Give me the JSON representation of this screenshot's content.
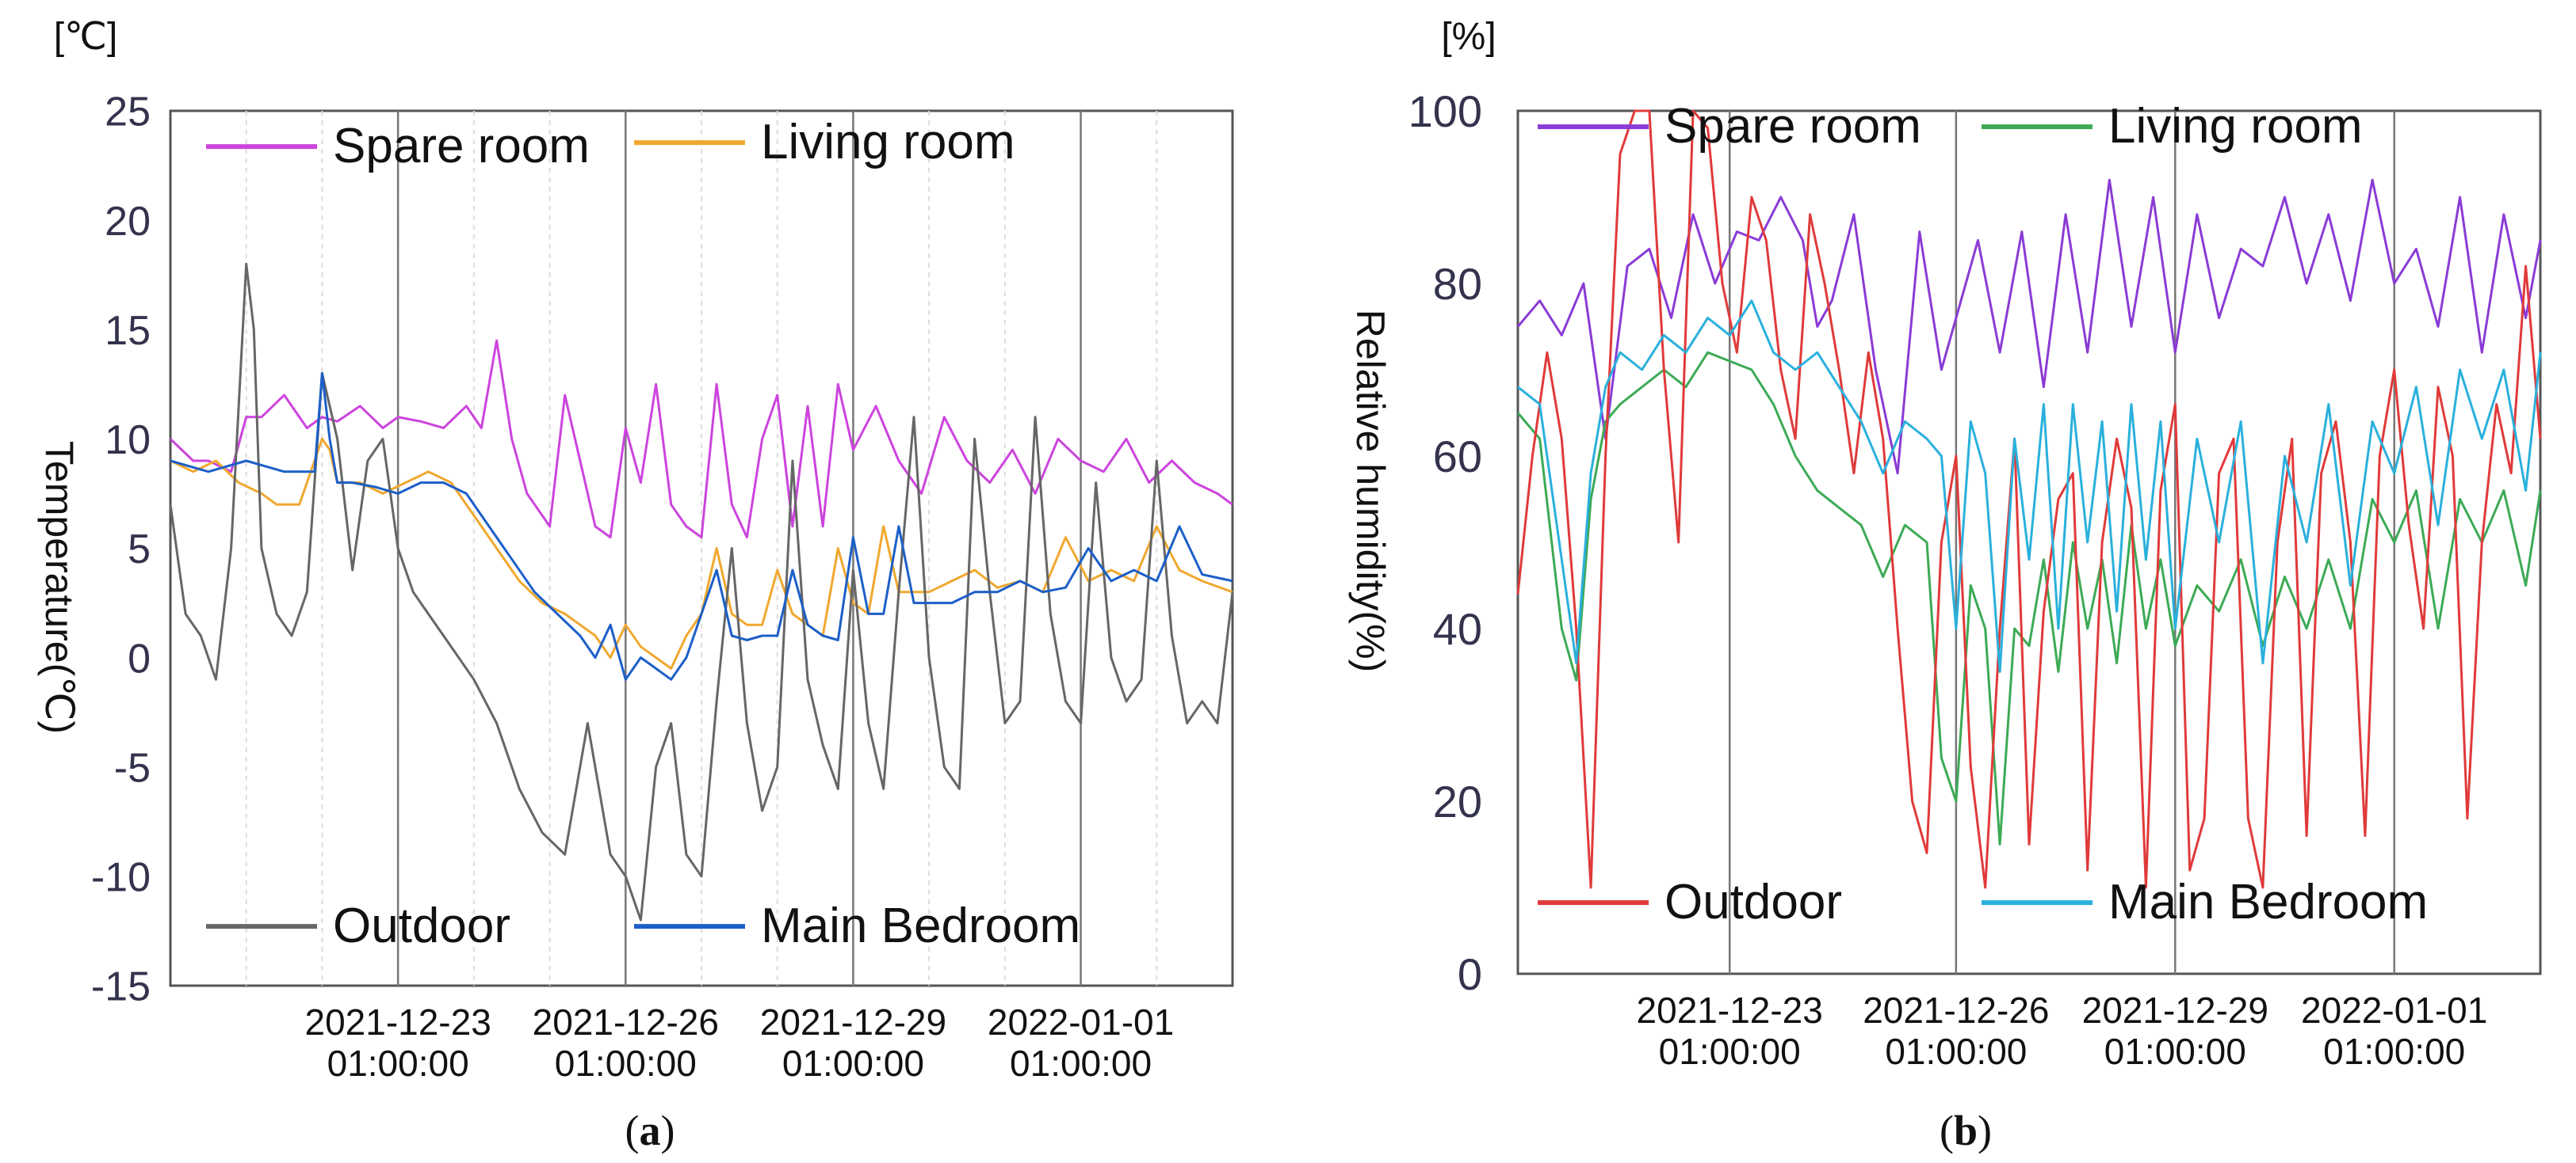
{
  "chart_data": [
    {
      "type": "line",
      "panel": "(a)",
      "panel_open": "(",
      "panel_letter": "a",
      "panel_close": ")",
      "unit_label": "[℃]",
      "ylabel": "Temperature(℃)",
      "ylim": [
        -15,
        25
      ],
      "yticks": [
        25,
        20,
        15,
        10,
        5,
        0,
        -5,
        -10,
        -15
      ],
      "xlim": [
        0,
        14
      ],
      "xticks": [
        {
          "day": 3,
          "date": "2021-12-23",
          "time": "01:00:00"
        },
        {
          "day": 6,
          "date": "2021-12-26",
          "time": "01:00:00"
        },
        {
          "day": 9,
          "date": "2021-12-29",
          "time": "01:00:00"
        },
        {
          "day": 12,
          "date": "2022-01-01",
          "time": "01:00:00"
        }
      ],
      "legend_top": [
        "Spare room",
        "Living room"
      ],
      "legend_bottom": [
        "Outdoor",
        "Main Bedroom"
      ],
      "series": [
        {
          "name": "Spare room",
          "color": "#cc44dd",
          "x": [
            0,
            0.3,
            0.5,
            0.8,
            1.0,
            1.2,
            1.5,
            1.8,
            2.0,
            2.2,
            2.5,
            2.8,
            3.0,
            3.3,
            3.6,
            3.9,
            4.1,
            4.3,
            4.5,
            4.7,
            5.0,
            5.2,
            5.4,
            5.6,
            5.8,
            6.0,
            6.2,
            6.4,
            6.6,
            6.8,
            7.0,
            7.2,
            7.4,
            7.6,
            7.8,
            8.0,
            8.2,
            8.4,
            8.6,
            8.8,
            9.0,
            9.3,
            9.6,
            9.9,
            10.2,
            10.5,
            10.8,
            11.1,
            11.4,
            11.7,
            12.0,
            12.3,
            12.6,
            12.9,
            13.2,
            13.5,
            13.8,
            14.0
          ],
          "values": [
            10,
            9,
            9,
            8.5,
            11,
            11,
            12,
            10.5,
            11,
            10.8,
            11.5,
            10.5,
            11,
            10.8,
            10.5,
            11.5,
            10.5,
            14.5,
            10,
            7.5,
            6,
            12,
            9,
            6,
            5.5,
            10.5,
            8,
            12.5,
            7,
            6,
            5.5,
            12.5,
            7,
            5.5,
            10,
            12,
            6,
            11.5,
            6,
            12.5,
            9.5,
            11.5,
            9,
            7.5,
            11,
            9,
            8,
            9.5,
            7.5,
            10,
            9,
            8.5,
            10,
            8,
            9,
            8,
            7.5,
            7
          ]
        },
        {
          "name": "Living room",
          "color": "#f0a830",
          "x": [
            0,
            0.3,
            0.6,
            0.9,
            1.2,
            1.4,
            1.7,
            2.0,
            2.1,
            2.2,
            2.3,
            2.5,
            2.8,
            3.1,
            3.4,
            3.7,
            4.0,
            4.3,
            4.6,
            4.9,
            5.2,
            5.4,
            5.6,
            5.8,
            6.0,
            6.2,
            6.4,
            6.6,
            6.8,
            7.0,
            7.2,
            7.4,
            7.6,
            7.8,
            8.0,
            8.2,
            8.4,
            8.6,
            8.8,
            9.0,
            9.2,
            9.4,
            9.6,
            9.8,
            10.0,
            10.3,
            10.6,
            10.9,
            11.2,
            11.5,
            11.8,
            12.1,
            12.4,
            12.7,
            13.0,
            13.3,
            13.6,
            14.0
          ],
          "values": [
            9,
            8.5,
            9,
            8,
            7.5,
            7,
            7,
            10,
            9.5,
            8,
            8,
            8,
            7.5,
            8,
            8.5,
            8,
            6.5,
            5,
            3.5,
            2.5,
            2,
            1.5,
            1,
            0,
            1.5,
            0.5,
            0,
            -0.5,
            1,
            2,
            5,
            2,
            1.5,
            1.5,
            4,
            2,
            1.5,
            1,
            5,
            2.5,
            2,
            6,
            3,
            3,
            3,
            3.5,
            4,
            3.2,
            3.5,
            3,
            5.5,
            3.5,
            4,
            3.5,
            6,
            4,
            3.5,
            3
          ]
        },
        {
          "name": "Outdoor",
          "color": "#666666",
          "x": [
            0,
            0.2,
            0.4,
            0.6,
            0.8,
            1.0,
            1.1,
            1.2,
            1.4,
            1.6,
            1.8,
            2.0,
            2.2,
            2.4,
            2.6,
            2.8,
            3.0,
            3.2,
            3.4,
            3.6,
            3.8,
            4.0,
            4.3,
            4.6,
            4.9,
            5.2,
            5.5,
            5.8,
            6.0,
            6.2,
            6.4,
            6.6,
            6.8,
            7.0,
            7.2,
            7.4,
            7.6,
            7.8,
            8.0,
            8.2,
            8.4,
            8.6,
            8.8,
            9.0,
            9.2,
            9.4,
            9.6,
            9.8,
            10.0,
            10.2,
            10.4,
            10.6,
            10.8,
            11.0,
            11.2,
            11.4,
            11.6,
            11.8,
            12.0,
            12.2,
            12.4,
            12.6,
            12.8,
            13.0,
            13.2,
            13.4,
            13.6,
            13.8,
            14.0
          ],
          "values": [
            7,
            2,
            1,
            -1,
            5,
            18,
            15,
            5,
            2,
            1,
            3,
            13,
            10,
            4,
            9,
            10,
            5,
            3,
            2,
            1,
            0,
            -1,
            -3,
            -6,
            -8,
            -9,
            -3,
            -9,
            -10,
            -12,
            -5,
            -3,
            -9,
            -10,
            -2,
            5,
            -3,
            -7,
            -5,
            9,
            -1,
            -4,
            -6,
            4,
            -3,
            -6,
            3,
            11,
            0,
            -5,
            -6,
            10,
            3,
            -3,
            -2,
            11,
            2,
            -2,
            -3,
            8,
            0,
            -2,
            -1,
            9,
            1,
            -3,
            -2,
            -3,
            3
          ]
        },
        {
          "name": "Main Bedroom",
          "color": "#1c5fc8",
          "x": [
            0,
            0.5,
            1.0,
            1.5,
            1.9,
            2.0,
            2.1,
            2.2,
            2.4,
            2.7,
            3.0,
            3.3,
            3.6,
            3.9,
            4.2,
            4.5,
            4.8,
            5.1,
            5.4,
            5.6,
            5.8,
            6.0,
            6.2,
            6.4,
            6.6,
            6.8,
            7.0,
            7.2,
            7.4,
            7.6,
            7.8,
            8.0,
            8.2,
            8.4,
            8.6,
            8.8,
            9.0,
            9.2,
            9.4,
            9.6,
            9.8,
            10.0,
            10.3,
            10.6,
            10.9,
            11.2,
            11.5,
            11.8,
            12.1,
            12.4,
            12.7,
            13.0,
            13.3,
            13.6,
            14.0
          ],
          "values": [
            9,
            8.5,
            9,
            8.5,
            8.5,
            13,
            10,
            8,
            8,
            7.8,
            7.5,
            8,
            8,
            7.5,
            6,
            4.5,
            3,
            2,
            1,
            0,
            1.5,
            -1,
            0,
            -0.5,
            -1,
            0,
            2,
            4,
            1,
            0.8,
            1,
            1,
            4,
            1.5,
            1,
            0.8,
            5.5,
            2,
            2,
            6,
            2.5,
            2.5,
            2.5,
            3,
            3,
            3.5,
            3,
            3.2,
            5,
            3.5,
            4,
            3.5,
            6,
            3.8,
            3.5
          ]
        }
      ]
    },
    {
      "type": "line",
      "panel": "(b)",
      "panel_open": "(",
      "panel_letter": "b",
      "panel_close": ")",
      "unit_label": "[%]",
      "ylabel": "Relative humidity(%)",
      "ylim": [
        0,
        100
      ],
      "yticks": [
        100,
        80,
        60,
        40,
        20,
        0
      ],
      "xlim": [
        0,
        14
      ],
      "xticks": [
        {
          "day": 2.9,
          "date": "2021-12-23",
          "time": "01:00:00"
        },
        {
          "day": 6,
          "date": "2021-12-26",
          "time": "01:00:00"
        },
        {
          "day": 9,
          "date": "2021-12-29",
          "time": "01:00:00"
        },
        {
          "day": 12,
          "date": "2022-01-01",
          "time": "01:00:00"
        }
      ],
      "legend_top": [
        "Spare room",
        "Living room"
      ],
      "legend_bottom": [
        "Outdoor",
        "Main Bedroom"
      ],
      "series": [
        {
          "name": "Spare room",
          "color": "#8a3bd6",
          "x": [
            0,
            0.3,
            0.6,
            0.9,
            1.2,
            1.5,
            1.8,
            2.1,
            2.4,
            2.7,
            3.0,
            3.3,
            3.6,
            3.9,
            4.1,
            4.3,
            4.6,
            4.9,
            5.2,
            5.5,
            5.8,
            6.0,
            6.3,
            6.6,
            6.9,
            7.2,
            7.5,
            7.8,
            8.1,
            8.4,
            8.7,
            9.0,
            9.3,
            9.6,
            9.9,
            10.2,
            10.5,
            10.8,
            11.1,
            11.4,
            11.7,
            12.0,
            12.3,
            12.6,
            12.9,
            13.2,
            13.5,
            13.8,
            14.0
          ],
          "values": [
            75,
            78,
            74,
            80,
            62,
            82,
            84,
            76,
            88,
            80,
            86,
            85,
            90,
            85,
            75,
            78,
            88,
            70,
            58,
            86,
            70,
            76,
            85,
            72,
            86,
            68,
            88,
            72,
            92,
            75,
            90,
            72,
            88,
            76,
            84,
            82,
            90,
            80,
            88,
            78,
            92,
            80,
            84,
            75,
            90,
            72,
            88,
            76,
            85
          ]
        },
        {
          "name": "Living room",
          "color": "#3caa55",
          "x": [
            0,
            0.3,
            0.6,
            0.8,
            1.0,
            1.2,
            1.4,
            1.7,
            2.0,
            2.3,
            2.6,
            2.9,
            3.2,
            3.5,
            3.8,
            4.1,
            4.4,
            4.7,
            5.0,
            5.3,
            5.6,
            5.8,
            6.0,
            6.2,
            6.4,
            6.6,
            6.8,
            7.0,
            7.2,
            7.4,
            7.6,
            7.8,
            8.0,
            8.2,
            8.4,
            8.6,
            8.8,
            9.0,
            9.3,
            9.6,
            9.9,
            10.2,
            10.5,
            10.8,
            11.1,
            11.4,
            11.7,
            12.0,
            12.3,
            12.6,
            12.9,
            13.2,
            13.5,
            13.8,
            14.0
          ],
          "values": [
            65,
            62,
            40,
            34,
            55,
            64,
            66,
            68,
            70,
            68,
            72,
            71,
            70,
            66,
            60,
            56,
            54,
            52,
            46,
            52,
            50,
            25,
            20,
            45,
            40,
            15,
            40,
            38,
            48,
            35,
            50,
            40,
            48,
            36,
            52,
            40,
            48,
            38,
            45,
            42,
            48,
            38,
            46,
            40,
            48,
            40,
            55,
            50,
            56,
            40,
            55,
            50,
            56,
            45,
            56
          ]
        },
        {
          "name": "Outdoor",
          "color": "#e03a3a",
          "x": [
            0,
            0.2,
            0.4,
            0.6,
            0.8,
            1.0,
            1.2,
            1.4,
            1.6,
            1.8,
            2.0,
            2.2,
            2.4,
            2.6,
            2.8,
            3.0,
            3.2,
            3.4,
            3.6,
            3.8,
            4.0,
            4.2,
            4.4,
            4.6,
            4.8,
            5.0,
            5.2,
            5.4,
            5.6,
            5.8,
            6.0,
            6.2,
            6.4,
            6.6,
            6.8,
            7.0,
            7.2,
            7.4,
            7.6,
            7.8,
            8.0,
            8.2,
            8.4,
            8.6,
            8.8,
            9.0,
            9.2,
            9.4,
            9.6,
            9.8,
            10.0,
            10.2,
            10.4,
            10.6,
            10.8,
            11.0,
            11.2,
            11.4,
            11.6,
            11.8,
            12.0,
            12.2,
            12.4,
            12.6,
            12.8,
            13.0,
            13.2,
            13.4,
            13.6,
            13.8,
            14.0
          ],
          "values": [
            44,
            60,
            72,
            62,
            40,
            10,
            60,
            95,
            100,
            100,
            70,
            50,
            100,
            98,
            80,
            72,
            90,
            85,
            70,
            62,
            88,
            80,
            70,
            58,
            72,
            62,
            40,
            20,
            14,
            50,
            60,
            24,
            10,
            40,
            62,
            15,
            42,
            55,
            58,
            12,
            50,
            62,
            54,
            10,
            56,
            66,
            12,
            18,
            58,
            62,
            18,
            10,
            50,
            62,
            16,
            58,
            64,
            50,
            16,
            60,
            70,
            52,
            40,
            68,
            60,
            18,
            50,
            66,
            58,
            82,
            62
          ]
        },
        {
          "name": "Main Bedroom",
          "color": "#2ab0dc",
          "x": [
            0,
            0.3,
            0.6,
            0.8,
            1.0,
            1.2,
            1.4,
            1.7,
            2.0,
            2.3,
            2.6,
            2.9,
            3.2,
            3.5,
            3.8,
            4.1,
            4.4,
            4.7,
            5.0,
            5.3,
            5.6,
            5.8,
            6.0,
            6.2,
            6.4,
            6.6,
            6.8,
            7.0,
            7.2,
            7.4,
            7.6,
            7.8,
            8.0,
            8.2,
            8.4,
            8.6,
            8.8,
            9.0,
            9.3,
            9.6,
            9.9,
            10.2,
            10.5,
            10.8,
            11.1,
            11.4,
            11.7,
            12.0,
            12.3,
            12.6,
            12.9,
            13.2,
            13.5,
            13.8,
            14.0
          ],
          "values": [
            68,
            66,
            48,
            36,
            58,
            68,
            72,
            70,
            74,
            72,
            76,
            74,
            78,
            72,
            70,
            72,
            68,
            64,
            58,
            64,
            62,
            60,
            40,
            64,
            58,
            35,
            62,
            48,
            66,
            40,
            66,
            50,
            64,
            42,
            66,
            48,
            64,
            40,
            62,
            50,
            64,
            36,
            60,
            50,
            66,
            45,
            64,
            58,
            68,
            52,
            70,
            62,
            70,
            56,
            72
          ]
        }
      ]
    }
  ]
}
